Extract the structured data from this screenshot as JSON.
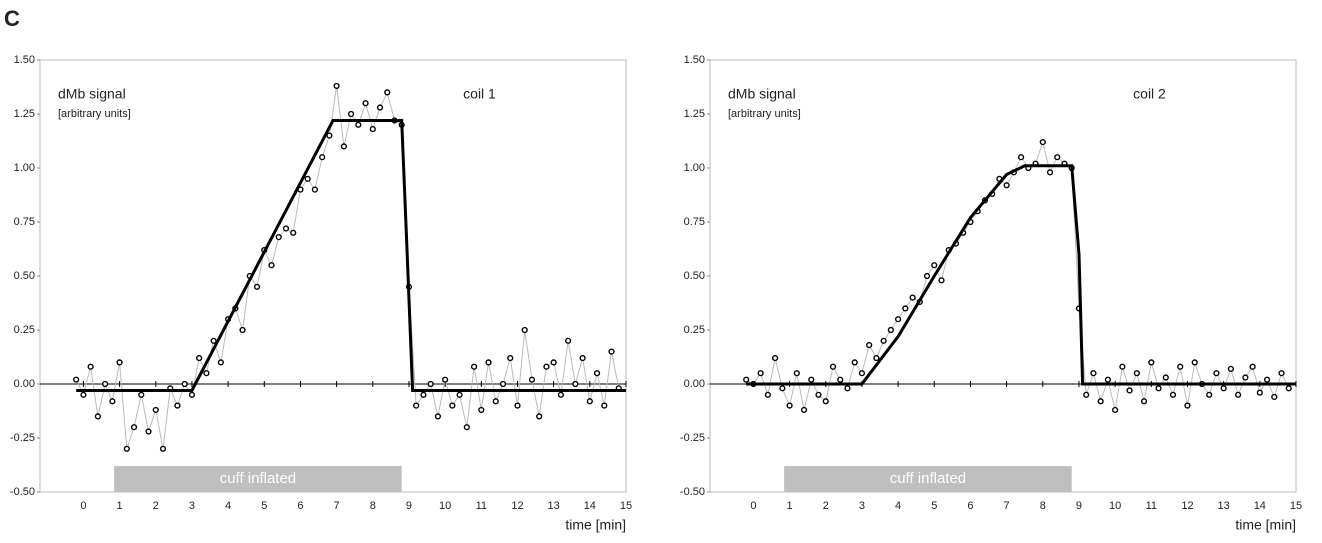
{
  "panel_label": "C",
  "chart_data": [
    {
      "type": "scatter",
      "panel_title": "coil 1",
      "y_label": "dMb signal",
      "y_label_note": "[arbitrary units]",
      "x_label": "time [min]",
      "shaded_span": {
        "label": "cuff inflated",
        "x": [
          0.85,
          8.8
        ]
      },
      "xlim": [
        -1.2,
        15
      ],
      "ylim": [
        -0.5,
        1.5
      ],
      "xticks": [
        0,
        1,
        2,
        3,
        4,
        5,
        6,
        7,
        8,
        9,
        10,
        11,
        12,
        13,
        14,
        15
      ],
      "yticks": [
        {
          "value": -0.5,
          "label": "-0.50"
        },
        {
          "value": -0.25,
          "label": "-0.25"
        },
        {
          "value": 0,
          "label": "0.00"
        },
        {
          "value": 0.25,
          "label": "0.25"
        },
        {
          "value": 0.5,
          "label": "0.50"
        },
        {
          "value": 0.75,
          "label": "0.75"
        },
        {
          "value": 1,
          "label": "1.00"
        },
        {
          "value": 1.25,
          "label": "1.25"
        },
        {
          "value": 1.5,
          "label": "1.50"
        }
      ],
      "series": [
        {
          "mode": "markers",
          "color": "#000000",
          "x": [
            -0.2,
            0,
            0.2,
            0.4,
            0.6,
            0.8,
            1,
            1.2,
            1.4,
            1.6,
            1.8,
            2,
            2.2,
            2.4,
            2.6,
            2.8,
            3,
            3.2,
            3.4,
            3.6,
            3.8,
            4,
            4.2,
            4.4,
            4.6,
            4.8,
            5,
            5.2,
            5.4,
            5.6,
            5.8,
            6,
            6.2,
            6.4,
            6.6,
            6.8,
            7,
            7.2,
            7.4,
            7.6,
            7.8,
            8,
            8.2,
            8.4,
            8.6,
            8.8,
            9,
            9.2,
            9.4,
            9.6,
            9.8,
            10,
            10.2,
            10.4,
            10.6,
            10.8,
            11,
            11.2,
            11.4,
            11.6,
            11.8,
            12,
            12.2,
            12.4,
            12.6,
            12.8,
            13,
            13.2,
            13.4,
            13.6,
            13.8,
            14,
            14.2,
            14.4,
            14.6,
            14.8
          ],
          "values": [
            0.02,
            -0.05,
            0.08,
            -0.15,
            0,
            -0.08,
            0.1,
            -0.3,
            -0.2,
            -0.05,
            -0.22,
            -0.12,
            -0.3,
            -0.02,
            -0.1,
            0,
            -0.05,
            0.12,
            0.05,
            0.2,
            0.1,
            0.3,
            0.35,
            0.25,
            0.5,
            0.45,
            0.62,
            0.55,
            0.68,
            0.72,
            0.7,
            0.9,
            0.95,
            0.9,
            1.05,
            1.15,
            1.38,
            1.1,
            1.25,
            1.2,
            1.3,
            1.18,
            1.28,
            1.35,
            1.22,
            1.2,
            0.45,
            -0.1,
            -0.05,
            0,
            -0.15,
            0.02,
            -0.1,
            -0.05,
            -0.2,
            0.08,
            -0.12,
            0.1,
            -0.08,
            0,
            0.12,
            -0.1,
            0.25,
            0.02,
            -0.15,
            0.08,
            0.1,
            -0.05,
            0.2,
            0,
            0.12,
            -0.08,
            0.05,
            -0.1,
            0.15,
            -0.02
          ]
        },
        {
          "mode": "line",
          "color": "#000000",
          "x": [
            -0.2,
            3,
            6.9,
            8.8,
            8.95,
            9.1,
            15
          ],
          "values": [
            -0.03,
            -0.03,
            1.22,
            1.22,
            0.6,
            -0.03,
            -0.03
          ]
        }
      ]
    },
    {
      "type": "scatter",
      "panel_title": "coil 2",
      "y_label": "dMb signal",
      "y_label_note": "[arbitrary units]",
      "x_label": "time [min]",
      "shaded_span": {
        "label": "cuff inflated",
        "x": [
          0.85,
          8.8
        ]
      },
      "xlim": [
        -1.2,
        15
      ],
      "ylim": [
        -0.5,
        1.5
      ],
      "xticks": [
        0,
        1,
        2,
        3,
        4,
        5,
        6,
        7,
        8,
        9,
        10,
        11,
        12,
        13,
        14,
        15
      ],
      "yticks": [
        {
          "value": -0.5,
          "label": "-0.50"
        },
        {
          "value": -0.25,
          "label": "-0.25"
        },
        {
          "value": 0,
          "label": "0.00"
        },
        {
          "value": 0.25,
          "label": "0.25"
        },
        {
          "value": 0.5,
          "label": "0.50"
        },
        {
          "value": 0.75,
          "label": "0.75"
        },
        {
          "value": 1,
          "label": "1.00"
        },
        {
          "value": 1.25,
          "label": "1.25"
        },
        {
          "value": 1.5,
          "label": "1.50"
        }
      ],
      "series": [
        {
          "mode": "markers",
          "color": "#000000",
          "x": [
            -0.2,
            0,
            0.2,
            0.4,
            0.6,
            0.8,
            1,
            1.2,
            1.4,
            1.6,
            1.8,
            2,
            2.2,
            2.4,
            2.6,
            2.8,
            3,
            3.2,
            3.4,
            3.6,
            3.8,
            4,
            4.2,
            4.4,
            4.6,
            4.8,
            5,
            5.2,
            5.4,
            5.6,
            5.8,
            6,
            6.2,
            6.4,
            6.6,
            6.8,
            7,
            7.2,
            7.4,
            7.6,
            7.8,
            8,
            8.2,
            8.4,
            8.6,
            8.8,
            9,
            9.2,
            9.4,
            9.6,
            9.8,
            10,
            10.2,
            10.4,
            10.6,
            10.8,
            11,
            11.2,
            11.4,
            11.6,
            11.8,
            12,
            12.2,
            12.4,
            12.6,
            12.8,
            13,
            13.2,
            13.4,
            13.6,
            13.8,
            14,
            14.2,
            14.4,
            14.6,
            14.8
          ],
          "values": [
            0.02,
            0,
            0.05,
            -0.05,
            0.12,
            -0.02,
            -0.1,
            0.05,
            -0.12,
            0.02,
            -0.05,
            -0.08,
            0.08,
            0.02,
            -0.02,
            0.1,
            0.05,
            0.18,
            0.12,
            0.2,
            0.25,
            0.3,
            0.35,
            0.4,
            0.38,
            0.5,
            0.55,
            0.48,
            0.62,
            0.65,
            0.7,
            0.75,
            0.8,
            0.85,
            0.88,
            0.95,
            0.92,
            0.98,
            1.05,
            1,
            1.02,
            1.12,
            0.98,
            1.05,
            1.02,
            1,
            0.35,
            -0.05,
            0.05,
            -0.08,
            0.02,
            -0.12,
            0.08,
            -0.03,
            0.05,
            -0.08,
            0.1,
            -0.02,
            0.03,
            -0.05,
            0.08,
            -0.1,
            0.1,
            0,
            -0.05,
            0.05,
            -0.02,
            0.07,
            -0.05,
            0.03,
            0.08,
            -0.04,
            0.02,
            -0.06,
            0.05,
            -0.02
          ]
        },
        {
          "mode": "line",
          "color": "#000000",
          "x": [
            -0.2,
            3,
            4,
            5,
            6,
            7,
            7.5,
            8.8,
            9,
            9.1,
            15
          ],
          "values": [
            0,
            0,
            0.22,
            0.5,
            0.77,
            0.97,
            1.01,
            1.01,
            0.6,
            0,
            0
          ]
        }
      ]
    }
  ]
}
